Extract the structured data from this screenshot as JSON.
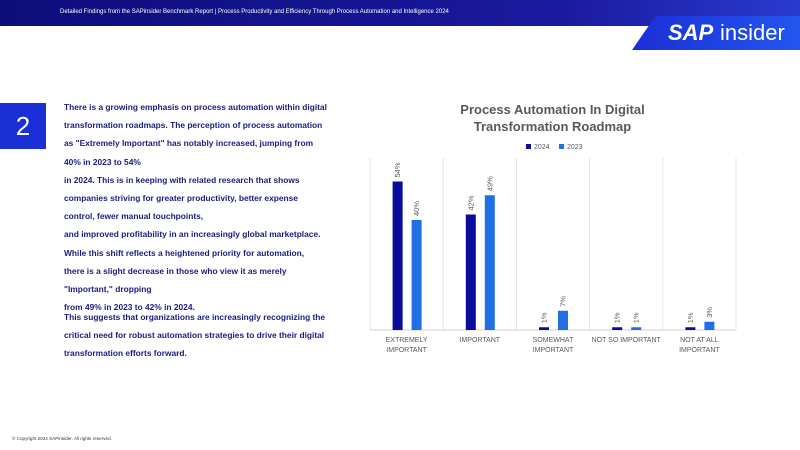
{
  "header": {
    "text": "Detailed Findings from the SAPinsider Benchmark Report | Process Productivity and Efficiency Through Process Automation and Intelligence 2024"
  },
  "logo": {
    "sap": "SAP",
    "insider": "insider"
  },
  "section_number": "2",
  "paragraphs": [
    [
      "There is a growing emphasis on process automation within digital",
      "transformation roadmaps. The perception of process automation",
      "as \"Extremely Important\" has notably increased, jumping from",
      "40% in 2023 to 54%",
      "in 2024. This is in keeping with related research that shows",
      "companies striving for greater productivity, better expense",
      "control, fewer manual touchpoints,",
      "and improved profitability in an increasingly global marketplace.",
      "While this shift reflects a heightened priority for automation,",
      "there is a slight decrease in those who view it as merely",
      "\"Important,\" dropping",
      "from 49% in 2023 to 42% in 2024."
    ],
    [
      "This suggests that organizations are increasingly recognizing the",
      "critical need for robust automation strategies to drive their digital",
      "transformation efforts forward."
    ]
  ],
  "footer": "© Copyright 2024 SAPinsider. All rights reserved.",
  "chart_data": {
    "type": "bar",
    "title": "Process Automation In Digital Transformation Roadmap",
    "categories": [
      "EXTREMELY IMPORTANT",
      "IMPORTANT",
      "SOMEWHAT IMPORTANT",
      "NOT SO IMPORTANT",
      "NOT AT ALL IMPORTANT"
    ],
    "series": [
      {
        "name": "2024",
        "color": "#0b0b9c",
        "values": [
          54,
          42,
          1,
          1,
          1
        ],
        "value_labels": [
          "54%",
          "42%",
          "1%",
          "1%",
          "1%"
        ]
      },
      {
        "name": "2023",
        "color": "#1f6fe5",
        "values": [
          40,
          49,
          7,
          1,
          3
        ],
        "value_labels": [
          "40%",
          "49%",
          "7%",
          "1%",
          "3%"
        ]
      }
    ],
    "ylim": [
      0,
      60
    ]
  }
}
